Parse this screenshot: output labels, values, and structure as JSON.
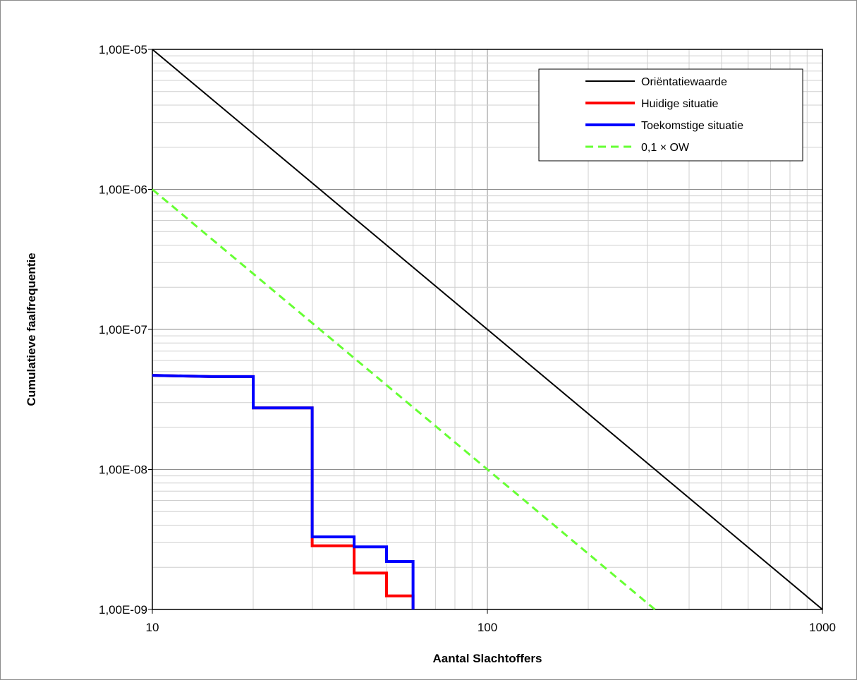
{
  "chart_data": {
    "type": "line",
    "xlabel": "Aantal Slachtoffers",
    "ylabel": "Cumulatieve faalfrequentie",
    "x_scale": "log",
    "y_scale": "log",
    "xlim": [
      10,
      1000
    ],
    "ylim": [
      1e-09,
      1e-05
    ],
    "x_ticks": [
      {
        "value": 10,
        "label": "10"
      },
      {
        "value": 100,
        "label": "100"
      },
      {
        "value": 1000,
        "label": "1000"
      }
    ],
    "y_ticks": [
      {
        "value": 1e-05,
        "label": "1,00E-05"
      },
      {
        "value": 1e-06,
        "label": "1,00E-06"
      },
      {
        "value": 1e-07,
        "label": "1,00E-07"
      },
      {
        "value": 1e-08,
        "label": "1,00E-08"
      },
      {
        "value": 1e-09,
        "label": "1,00E-09"
      }
    ],
    "grid": true,
    "legend_position": "top-right",
    "series": [
      {
        "name": "Oriëntatiewaarde",
        "color": "#000000",
        "style": "solid",
        "x": [
          10,
          1000
        ],
        "y": [
          1e-05,
          1e-09
        ]
      },
      {
        "name": "Huidige situatie",
        "color": "#ff0000",
        "style": "step",
        "x": [
          10,
          15,
          20,
          20,
          30,
          30,
          40,
          40,
          50,
          50,
          60,
          60
        ],
        "y": [
          4.7e-08,
          4.6e-08,
          4.6e-08,
          2.75e-08,
          2.75e-08,
          2.85e-09,
          2.85e-09,
          1.82e-09,
          1.82e-09,
          1.25e-09,
          1.25e-09,
          1e-09
        ]
      },
      {
        "name": "Toekomstige situatie",
        "color": "#0000ff",
        "style": "step",
        "x": [
          10,
          15,
          20,
          20,
          30,
          30,
          40,
          40,
          50,
          50,
          60,
          60
        ],
        "y": [
          4.7e-08,
          4.6e-08,
          4.6e-08,
          2.75e-08,
          2.75e-08,
          3.3e-09,
          3.3e-09,
          2.8e-09,
          2.8e-09,
          2.2e-09,
          2.2e-09,
          1e-09
        ]
      },
      {
        "name": "0,1 × OW",
        "color": "#66ff33",
        "style": "dashed",
        "x": [
          10,
          316.2
        ],
        "y": [
          1e-06,
          1e-09
        ]
      }
    ]
  }
}
